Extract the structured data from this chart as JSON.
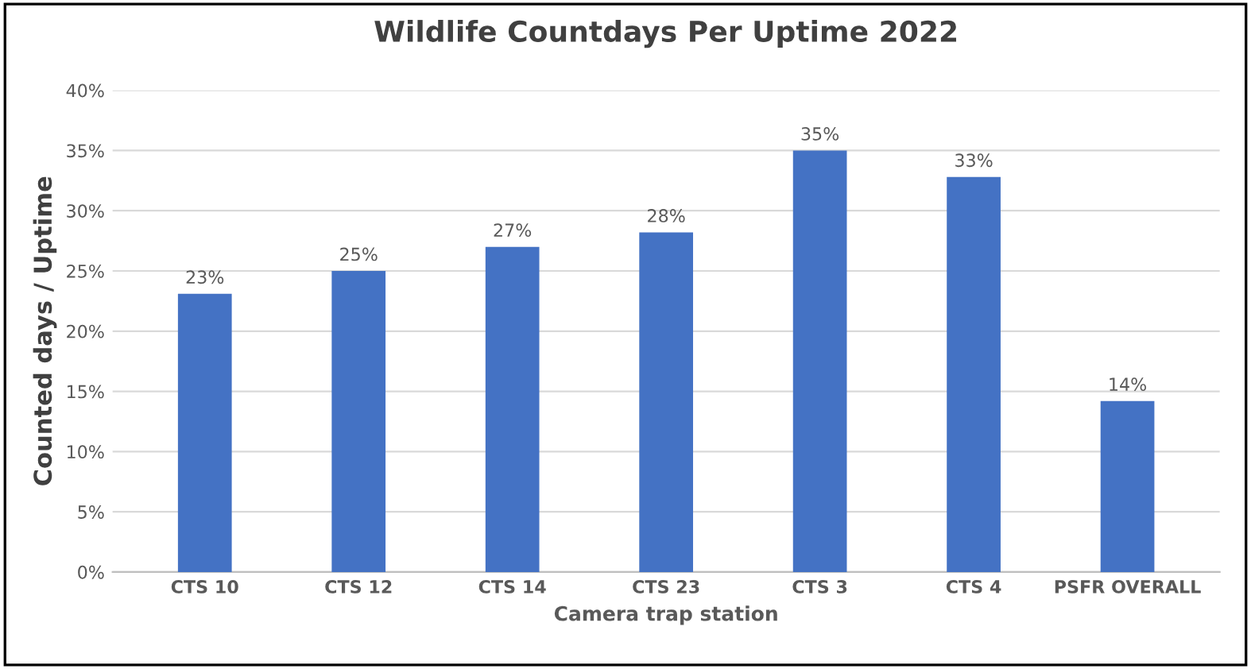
{
  "chart_data": {
    "type": "bar",
    "title": "Wildlife Countdays Per Uptime 2022",
    "xlabel": "Camera trap station",
    "ylabel": "Counted days / Uptime",
    "categories": [
      "CTS 10",
      "CTS 12",
      "CTS 14",
      "CTS 23",
      "CTS 3",
      "CTS 4",
      "PSFR OVERALL"
    ],
    "values": [
      23.1,
      25,
      27,
      28.2,
      35,
      32.8,
      14.2
    ],
    "value_labels": [
      "23%",
      "25%",
      "27%",
      "28%",
      "35%",
      "33%",
      "14%"
    ],
    "color": "#4472c4",
    "ylim": [
      0,
      40
    ],
    "yticks": [
      {
        "value": 0,
        "label": "0%"
      },
      {
        "value": 5,
        "label": "5%"
      },
      {
        "value": 10,
        "label": "10%"
      },
      {
        "value": 15,
        "label": "15%"
      },
      {
        "value": 20,
        "label": "20%"
      },
      {
        "value": 25,
        "label": "25%"
      },
      {
        "value": 30,
        "label": "30%"
      },
      {
        "value": 35,
        "label": "35%"
      },
      {
        "value": 40,
        "label": "40%"
      }
    ],
    "grid": "y",
    "legend": false
  }
}
